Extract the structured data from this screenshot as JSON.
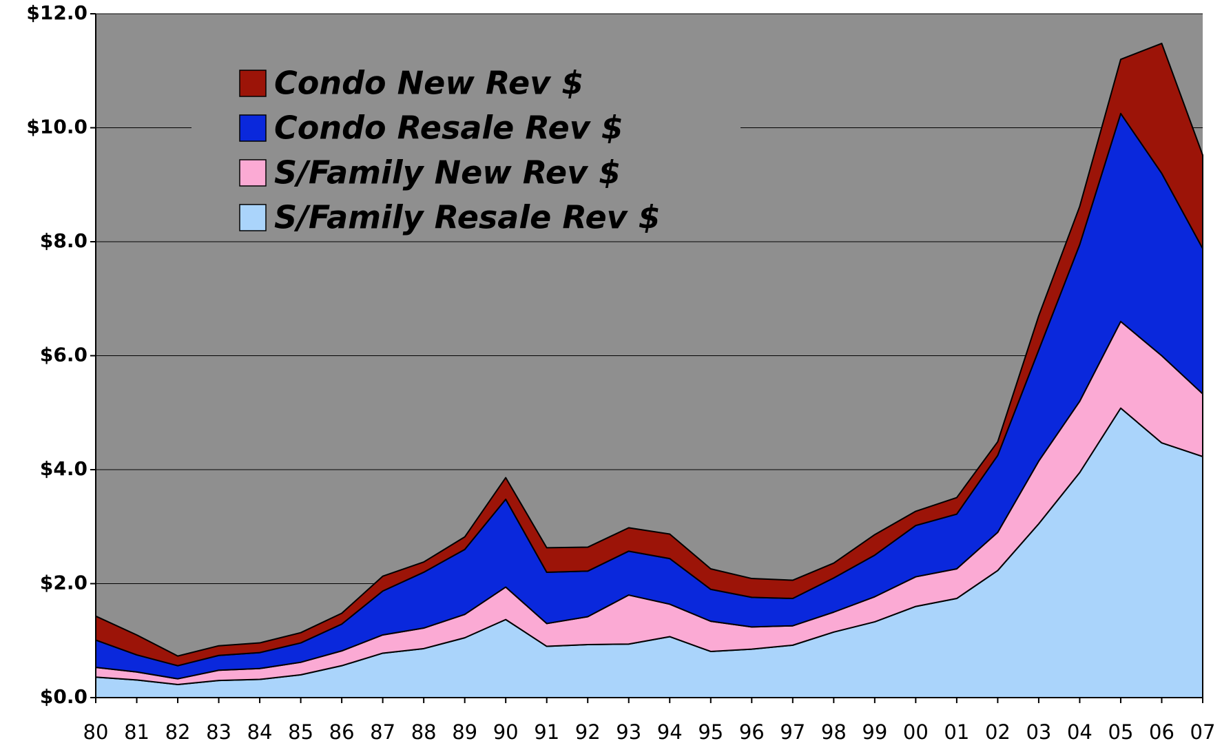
{
  "chart_data": {
    "type": "stacked_area",
    "categories": [
      "80",
      "81",
      "82",
      "83",
      "84",
      "85",
      "86",
      "87",
      "88",
      "89",
      "90",
      "91",
      "92",
      "93",
      "94",
      "95",
      "96",
      "97",
      "98",
      "99",
      "00",
      "01",
      "02",
      "03",
      "04",
      "05",
      "06",
      "07"
    ],
    "series": [
      {
        "name": "S/Family Resale Rev $",
        "color": "#aad4fb",
        "values": [
          0.36,
          0.31,
          0.23,
          0.3,
          0.32,
          0.4,
          0.56,
          0.78,
          0.86,
          1.05,
          1.37,
          0.9,
          0.93,
          0.94,
          1.07,
          0.81,
          0.85,
          0.92,
          1.15,
          1.33,
          1.6,
          1.74,
          2.23,
          3.05,
          3.95,
          5.08,
          4.47,
          4.23
        ]
      },
      {
        "name": "S/Family New Rev $",
        "color": "#fbaad4",
        "values": [
          0.17,
          0.14,
          0.1,
          0.18,
          0.19,
          0.22,
          0.26,
          0.32,
          0.36,
          0.41,
          0.57,
          0.4,
          0.49,
          0.86,
          0.57,
          0.53,
          0.39,
          0.34,
          0.35,
          0.44,
          0.52,
          0.52,
          0.67,
          1.1,
          1.25,
          1.52,
          1.53,
          1.1
        ]
      },
      {
        "name": "Condo Resale Rev $",
        "color": "#0a28dc",
        "values": [
          0.48,
          0.3,
          0.23,
          0.26,
          0.28,
          0.34,
          0.47,
          0.77,
          0.98,
          1.14,
          1.54,
          0.9,
          0.8,
          0.77,
          0.8,
          0.56,
          0.52,
          0.48,
          0.6,
          0.73,
          0.9,
          0.96,
          1.35,
          1.95,
          2.75,
          3.65,
          3.2,
          2.55
        ]
      },
      {
        "name": "Condo New Rev $",
        "color": "#9c1408",
        "values": [
          0.42,
          0.35,
          0.17,
          0.17,
          0.17,
          0.18,
          0.19,
          0.26,
          0.18,
          0.22,
          0.38,
          0.43,
          0.42,
          0.41,
          0.43,
          0.36,
          0.33,
          0.32,
          0.26,
          0.36,
          0.25,
          0.29,
          0.24,
          0.6,
          0.67,
          0.95,
          2.28,
          1.64
        ]
      }
    ],
    "ylim": [
      0,
      12
    ],
    "yticks": [
      {
        "value": 0,
        "label": "$0.0"
      },
      {
        "value": 2,
        "label": "$2.0"
      },
      {
        "value": 4,
        "label": "$4.0"
      },
      {
        "value": 6,
        "label": "$6.0"
      },
      {
        "value": 8,
        "label": "$8.0"
      },
      {
        "value": 10,
        "label": "$10.0"
      },
      {
        "value": 12,
        "label": "$12.0"
      }
    ],
    "grid": true,
    "background": "#8f8f8f",
    "legend": "upper left"
  }
}
